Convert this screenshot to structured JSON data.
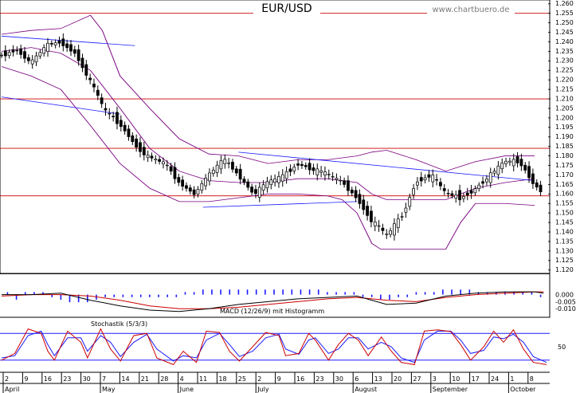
{
  "chart_data": [
    {
      "type": "candlestick",
      "title": "EUR/USD",
      "source": "www.chartbuero.de",
      "ylim": [
        1.12,
        1.26
      ],
      "y_ticks": [
        "1.260",
        "1.255",
        "1.250",
        "1.245",
        "1.240",
        "1.235",
        "1.230",
        "1.225",
        "1.220",
        "1.215",
        "1.210",
        "1.205",
        "1.200",
        "1.195",
        "1.190",
        "1.185",
        "1.180",
        "1.175",
        "1.170",
        "1.165",
        "1.160",
        "1.155",
        "1.150",
        "1.145",
        "1.140",
        "1.135",
        "1.130",
        "1.125",
        "1.120"
      ],
      "horizontal_levels": [
        1.255,
        1.21,
        1.184,
        1.159
      ],
      "price_path": [
        [
          0,
          1.233
        ],
        [
          5,
          1.236
        ],
        [
          10,
          1.229
        ],
        [
          15,
          1.238
        ],
        [
          20,
          1.24
        ],
        [
          25,
          1.234
        ],
        [
          30,
          1.219
        ],
        [
          35,
          1.203
        ],
        [
          40,
          1.197
        ],
        [
          45,
          1.186
        ],
        [
          50,
          1.179
        ],
        [
          55,
          1.176
        ],
        [
          60,
          1.166
        ],
        [
          65,
          1.16
        ],
        [
          70,
          1.17
        ],
        [
          75,
          1.178
        ],
        [
          80,
          1.17
        ],
        [
          85,
          1.16
        ],
        [
          90,
          1.166
        ],
        [
          95,
          1.169
        ],
        [
          100,
          1.176
        ],
        [
          105,
          1.173
        ],
        [
          110,
          1.17
        ],
        [
          115,
          1.166
        ],
        [
          120,
          1.158
        ],
        [
          125,
          1.146
        ],
        [
          130,
          1.138
        ],
        [
          135,
          1.148
        ],
        [
          140,
          1.167
        ],
        [
          145,
          1.17
        ],
        [
          150,
          1.16
        ],
        [
          155,
          1.158
        ],
        [
          160,
          1.163
        ],
        [
          165,
          1.17
        ],
        [
          170,
          1.177
        ],
        [
          175,
          1.177
        ],
        [
          180,
          1.165
        ],
        [
          183,
          1.16
        ]
      ],
      "bollinger_upper_path": [
        [
          0,
          1.244
        ],
        [
          10,
          1.246
        ],
        [
          20,
          1.247
        ],
        [
          30,
          1.254
        ],
        [
          34,
          1.246
        ],
        [
          40,
          1.222
        ],
        [
          50,
          1.205
        ],
        [
          60,
          1.189
        ],
        [
          70,
          1.181
        ],
        [
          80,
          1.18
        ],
        [
          90,
          1.176
        ],
        [
          100,
          1.178
        ],
        [
          110,
          1.178
        ],
        [
          120,
          1.18
        ],
        [
          125,
          1.182
        ],
        [
          130,
          1.183
        ],
        [
          140,
          1.178
        ],
        [
          150,
          1.172
        ],
        [
          160,
          1.177
        ],
        [
          170,
          1.18
        ],
        [
          180,
          1.18
        ]
      ],
      "bollinger_lower_path": [
        [
          0,
          1.227
        ],
        [
          10,
          1.222
        ],
        [
          20,
          1.215
        ],
        [
          30,
          1.196
        ],
        [
          40,
          1.176
        ],
        [
          50,
          1.163
        ],
        [
          60,
          1.156
        ],
        [
          70,
          1.156
        ],
        [
          80,
          1.158
        ],
        [
          90,
          1.16
        ],
        [
          100,
          1.16
        ],
        [
          110,
          1.159
        ],
        [
          115,
          1.157
        ],
        [
          120,
          1.15
        ],
        [
          125,
          1.134
        ],
        [
          128,
          1.131
        ],
        [
          140,
          1.131
        ],
        [
          150,
          1.131
        ],
        [
          155,
          1.145
        ],
        [
          160,
          1.155
        ],
        [
          170,
          1.155
        ],
        [
          180,
          1.154
        ]
      ],
      "moving_average_path": [
        [
          0,
          1.235
        ],
        [
          10,
          1.237
        ],
        [
          20,
          1.234
        ],
        [
          30,
          1.225
        ],
        [
          40,
          1.205
        ],
        [
          50,
          1.184
        ],
        [
          60,
          1.172
        ],
        [
          70,
          1.167
        ],
        [
          80,
          1.166
        ],
        [
          90,
          1.166
        ],
        [
          100,
          1.168
        ],
        [
          110,
          1.168
        ],
        [
          120,
          1.166
        ],
        [
          125,
          1.16
        ],
        [
          130,
          1.157
        ],
        [
          140,
          1.157
        ],
        [
          150,
          1.157
        ],
        [
          160,
          1.163
        ],
        [
          170,
          1.166
        ],
        [
          180,
          1.168
        ]
      ],
      "trendlines": [
        [
          [
            0,
            1.243
          ],
          [
            45,
            1.238
          ]
        ],
        [
          [
            0,
            1.211
          ],
          [
            40,
            1.202
          ]
        ],
        [
          [
            80,
            1.182
          ],
          [
            180,
            1.167
          ]
        ],
        [
          [
            68,
            1.153
          ],
          [
            120,
            1.156
          ]
        ]
      ]
    },
    {
      "type": "macd",
      "label": "MACD (12/26/9) mit Histogramm",
      "ylim": [
        -0.015,
        0.01
      ],
      "y_ticks": [
        "0.000",
        "-0.005",
        "-0.010"
      ],
      "macd_path": [
        [
          0,
          0.0
        ],
        [
          10,
          0.0
        ],
        [
          20,
          0.001
        ],
        [
          30,
          -0.004
        ],
        [
          40,
          -0.008
        ],
        [
          50,
          -0.011
        ],
        [
          60,
          -0.012
        ],
        [
          70,
          -0.01
        ],
        [
          80,
          -0.007
        ],
        [
          90,
          -0.005
        ],
        [
          100,
          -0.003
        ],
        [
          110,
          -0.002
        ],
        [
          120,
          -0.001
        ],
        [
          125,
          -0.004
        ],
        [
          130,
          -0.007
        ],
        [
          140,
          -0.006
        ],
        [
          150,
          -0.001
        ],
        [
          160,
          0.001
        ],
        [
          170,
          0.002
        ],
        [
          180,
          0.002
        ],
        [
          183,
          0.001
        ]
      ],
      "signal_path": [
        [
          0,
          -0.001
        ],
        [
          10,
          0.0
        ],
        [
          20,
          0.0
        ],
        [
          30,
          -0.001
        ],
        [
          40,
          -0.004
        ],
        [
          50,
          -0.008
        ],
        [
          60,
          -0.01
        ],
        [
          70,
          -0.01
        ],
        [
          80,
          -0.009
        ],
        [
          90,
          -0.007
        ],
        [
          100,
          -0.005
        ],
        [
          110,
          -0.003
        ],
        [
          120,
          -0.002
        ],
        [
          125,
          -0.003
        ],
        [
          130,
          -0.004
        ],
        [
          140,
          -0.005
        ],
        [
          150,
          -0.002
        ],
        [
          160,
          0.0
        ],
        [
          170,
          0.001
        ],
        [
          180,
          0.002
        ],
        [
          183,
          0.002
        ]
      ],
      "histogram": [
        [
          2,
          0.001
        ],
        [
          5,
          -0.002
        ],
        [
          8,
          0.001
        ],
        [
          11,
          0.001
        ],
        [
          14,
          0.001
        ],
        [
          17,
          -0.001
        ],
        [
          20,
          -0.002
        ],
        [
          23,
          -0.003
        ],
        [
          26,
          -0.003
        ],
        [
          29,
          -0.003
        ],
        [
          32,
          -0.002
        ],
        [
          35,
          -0.001
        ],
        [
          38,
          -0.001
        ],
        [
          41,
          -0.001
        ],
        [
          44,
          -0.001
        ],
        [
          47,
          -0.001
        ],
        [
          50,
          -0.001
        ],
        [
          53,
          -0.001
        ],
        [
          56,
          -0.001
        ],
        [
          59,
          -0.001
        ],
        [
          62,
          0.001
        ],
        [
          65,
          0.001
        ],
        [
          68,
          0.002
        ],
        [
          71,
          0.002
        ],
        [
          74,
          0.002
        ],
        [
          77,
          0.002
        ],
        [
          80,
          0.002
        ],
        [
          83,
          0.002
        ],
        [
          86,
          0.002
        ],
        [
          89,
          0.002
        ],
        [
          92,
          0.002
        ],
        [
          95,
          0.002
        ],
        [
          98,
          0.002
        ],
        [
          101,
          0.002
        ],
        [
          104,
          0.002
        ],
        [
          107,
          0.002
        ],
        [
          110,
          0.001
        ],
        [
          113,
          0.001
        ],
        [
          116,
          0.001
        ],
        [
          119,
          0.001
        ],
        [
          122,
          -0.001
        ],
        [
          125,
          -0.001
        ],
        [
          128,
          -0.002
        ],
        [
          131,
          -0.002
        ],
        [
          134,
          -0.001
        ],
        [
          137,
          -0.001
        ],
        [
          140,
          0.001
        ],
        [
          143,
          0.001
        ],
        [
          146,
          0.001
        ],
        [
          149,
          0.002
        ],
        [
          152,
          0.002
        ],
        [
          155,
          0.002
        ],
        [
          158,
          0.002
        ],
        [
          161,
          0.001
        ],
        [
          164,
          0.001
        ],
        [
          167,
          0.001
        ],
        [
          170,
          0.001
        ],
        [
          173,
          0.001
        ],
        [
          176,
          0.001
        ],
        [
          179,
          0.001
        ],
        [
          182,
          -0.001
        ]
      ]
    },
    {
      "type": "stochastic",
      "label": "Stochastik (5/3/3)",
      "ylim": [
        0,
        100
      ],
      "y_ticks": [
        "50"
      ],
      "levels": [
        80,
        20
      ],
      "k_path": [
        [
          0,
          20
        ],
        [
          4,
          35
        ],
        [
          8,
          90
        ],
        [
          12,
          80
        ],
        [
          14,
          40
        ],
        [
          16,
          20
        ],
        [
          20,
          85
        ],
        [
          24,
          60
        ],
        [
          26,
          25
        ],
        [
          30,
          90
        ],
        [
          33,
          45
        ],
        [
          36,
          18
        ],
        [
          40,
          75
        ],
        [
          44,
          80
        ],
        [
          47,
          25
        ],
        [
          52,
          10
        ],
        [
          55,
          40
        ],
        [
          59,
          15
        ],
        [
          62,
          85
        ],
        [
          66,
          82
        ],
        [
          69,
          40
        ],
        [
          72,
          18
        ],
        [
          76,
          50
        ],
        [
          80,
          82
        ],
        [
          84,
          75
        ],
        [
          86,
          30
        ],
        [
          90,
          35
        ],
        [
          93,
          80
        ],
        [
          95,
          65
        ],
        [
          99,
          20
        ],
        [
          102,
          55
        ],
        [
          105,
          80
        ],
        [
          108,
          65
        ],
        [
          111,
          30
        ],
        [
          115,
          72
        ],
        [
          118,
          40
        ],
        [
          121,
          15
        ],
        [
          125,
          10
        ],
        [
          128,
          85
        ],
        [
          132,
          88
        ],
        [
          136,
          84
        ],
        [
          139,
          55
        ],
        [
          142,
          20
        ],
        [
          146,
          50
        ],
        [
          149,
          85
        ],
        [
          152,
          60
        ],
        [
          155,
          88
        ],
        [
          158,
          45
        ],
        [
          161,
          15
        ],
        [
          165,
          10
        ]
      ],
      "d_path": [
        [
          0,
          25
        ],
        [
          4,
          30
        ],
        [
          8,
          75
        ],
        [
          12,
          85
        ],
        [
          14,
          55
        ],
        [
          16,
          30
        ],
        [
          20,
          70
        ],
        [
          24,
          70
        ],
        [
          26,
          40
        ],
        [
          30,
          75
        ],
        [
          33,
          60
        ],
        [
          36,
          28
        ],
        [
          40,
          60
        ],
        [
          44,
          78
        ],
        [
          47,
          45
        ],
        [
          52,
          18
        ],
        [
          55,
          30
        ],
        [
          59,
          25
        ],
        [
          62,
          65
        ],
        [
          66,
          80
        ],
        [
          69,
          55
        ],
        [
          72,
          28
        ],
        [
          76,
          40
        ],
        [
          80,
          70
        ],
        [
          84,
          78
        ],
        [
          86,
          45
        ],
        [
          90,
          33
        ],
        [
          93,
          65
        ],
        [
          95,
          70
        ],
        [
          99,
          35
        ],
        [
          102,
          45
        ],
        [
          105,
          70
        ],
        [
          108,
          70
        ],
        [
          111,
          45
        ],
        [
          115,
          60
        ],
        [
          118,
          50
        ],
        [
          121,
          25
        ],
        [
          125,
          15
        ],
        [
          128,
          65
        ],
        [
          132,
          85
        ],
        [
          136,
          85
        ],
        [
          139,
          65
        ],
        [
          142,
          35
        ],
        [
          146,
          42
        ],
        [
          149,
          72
        ],
        [
          152,
          68
        ],
        [
          155,
          78
        ],
        [
          158,
          60
        ],
        [
          161,
          28
        ],
        [
          165,
          15
        ]
      ]
    }
  ],
  "x_axis": {
    "day_labels": [
      "2",
      "9",
      "16",
      "23",
      "30",
      "7",
      "14",
      "21",
      "28",
      "4",
      "11",
      "18",
      "25",
      "2",
      "9",
      "16",
      "23",
      "30",
      "6",
      "13",
      "20",
      "27",
      "3",
      "10",
      "17",
      "24",
      "1",
      "8"
    ],
    "month_labels": [
      {
        "label": "April",
        "at": 0
      },
      {
        "label": "May",
        "at": 5
      },
      {
        "label": "June",
        "at": 9
      },
      {
        "label": "July",
        "at": 13
      },
      {
        "label": "August",
        "at": 18
      },
      {
        "label": "September",
        "at": 22
      },
      {
        "label": "October",
        "at": 26
      }
    ]
  },
  "colors": {
    "price_up": "#000000",
    "bollinger": "#7a0080",
    "trendline": "#1a1aff",
    "level": "#cc0000",
    "macd": "#000000",
    "signal": "#cc0000",
    "histogram": "#1a1aff",
    "stoch_k": "#cc0000",
    "stoch_d": "#1a1aff"
  }
}
